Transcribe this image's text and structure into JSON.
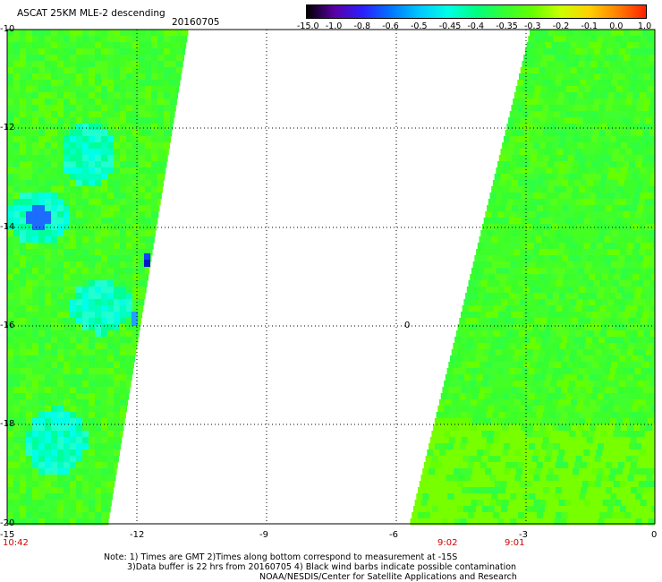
{
  "title": "ASCAT 25KM MLE-2 descending",
  "date": "20160705",
  "colorbar": {
    "labels": [
      "-15.0",
      "-1.0",
      "-0.8",
      "-0.6",
      "-0.5",
      "-0.45",
      "-0.4",
      "-0.35",
      "-0.3",
      "-0.2",
      "-0.1",
      "0.0",
      "1.0"
    ],
    "colors": [
      "#000000",
      "#5a00a8",
      "#2a20ff",
      "#0078ff",
      "#00c8ff",
      "#00ffe6",
      "#00ff80",
      "#33ff33",
      "#66ff00",
      "#ccff00",
      "#ffd000",
      "#ff8000",
      "#ff2000"
    ]
  },
  "axes": {
    "x_ticks": [
      "-15",
      "-12",
      "-9",
      "-6",
      "-3",
      "0"
    ],
    "y_ticks": [
      "-10",
      "-12",
      "-14",
      "-16",
      "-18",
      "-20"
    ]
  },
  "times": {
    "left": "10:42",
    "middle": "9:02",
    "right": "9:01"
  },
  "marker": "0",
  "notes": {
    "line1": "Note: 1) Times are GMT 2)Times along bottom correspond to measurement at -15S",
    "line2": "3)Data buffer is 22 hrs from 20160705 4) Black wind barbs indicate possible contamination",
    "line3": "NOAA/NESDIS/Center for Satellite Applications and Research"
  }
}
